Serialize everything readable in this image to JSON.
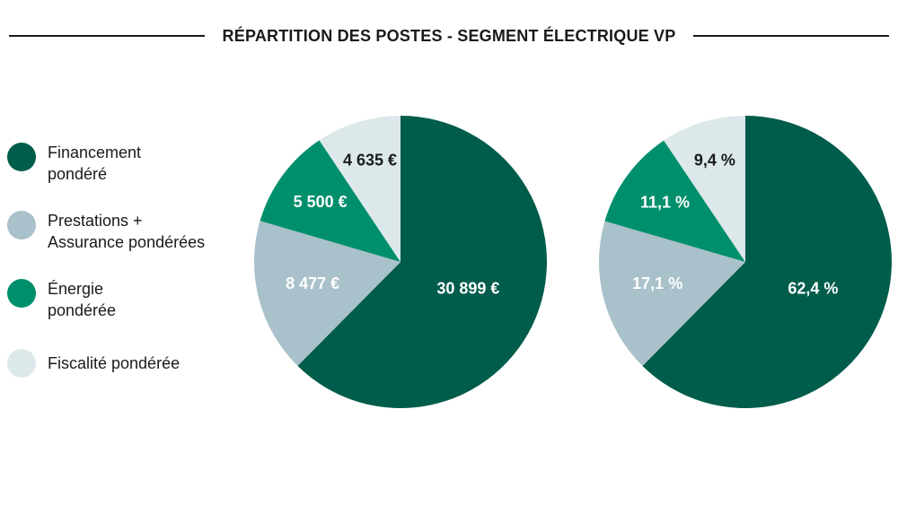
{
  "title": "RÉPARTITION DES POSTES - SEGMENT ÉLECTRIQUE VP",
  "legend": [
    {
      "label": "Financement\npondéré",
      "color": "#005c4b"
    },
    {
      "label": "Prestations +\nAssurance pondérées",
      "color": "#a9c1ca"
    },
    {
      "label": "Énergie\npondérée",
      "color": "#008f6c"
    },
    {
      "label": "Fiscalité pondérée",
      "color": "#dce8e9"
    }
  ],
  "chart_data": [
    {
      "type": "pie",
      "categories": [
        "Financement pondéré",
        "Prestations + Assurance pondérées",
        "Énergie pondérée",
        "Fiscalité pondérée"
      ],
      "values": [
        30899,
        8477,
        5500,
        4635
      ],
      "labels": [
        "30 899 €",
        "8 477 €",
        "5 500 €",
        "4 635 €"
      ],
      "colors": [
        "#005c4b",
        "#a9c1ca",
        "#008f6c",
        "#dce8e9"
      ],
      "label_colors": [
        "#ffffff",
        "#ffffff",
        "#ffffff",
        "#1a1a1a"
      ],
      "unit": "€"
    },
    {
      "type": "pie",
      "categories": [
        "Financement pondéré",
        "Prestations + Assurance pondérées",
        "Énergie pondérée",
        "Fiscalité pondérée"
      ],
      "values": [
        62.4,
        17.1,
        11.1,
        9.4
      ],
      "labels": [
        "62,4 %",
        "17,1 %",
        "11,1 %",
        "9,4 %"
      ],
      "colors": [
        "#005c4b",
        "#a9c1ca",
        "#008f6c",
        "#dce8e9"
      ],
      "label_colors": [
        "#ffffff",
        "#ffffff",
        "#ffffff",
        "#1a1a1a"
      ],
      "unit": "%"
    }
  ]
}
